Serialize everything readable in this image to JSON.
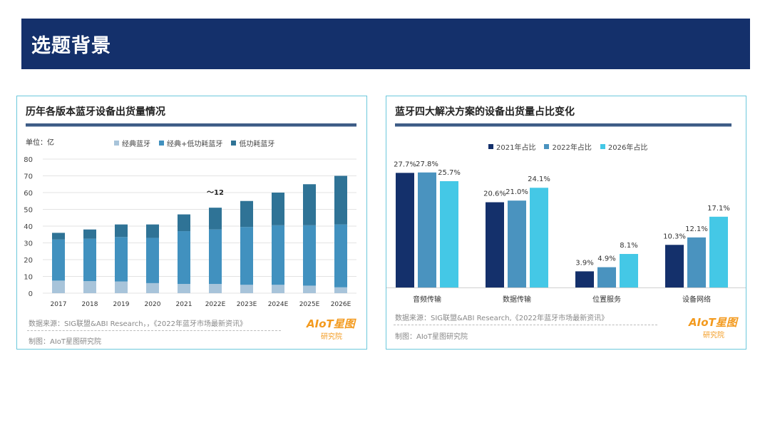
{
  "header": {
    "title": "选题背景"
  },
  "left_panel": {
    "title": "历年各版本蓝牙设备出货量情况",
    "unit_label": "单位：亿",
    "annotation": "～12",
    "source": "数据来源：SIG联盟&ABI Research，，《2022年蓝牙市场最新资讯》",
    "credit": "制图：AIoT星图研究院"
  },
  "right_panel": {
    "title": "蓝牙四大解决方案的设备出货量占比变化",
    "source": "数据来源：SIG联盟&ABI Research,《2022年蓝牙市场最新资讯》",
    "credit": "制图：AIoT星图研究院"
  },
  "logo": {
    "top": "AIoT星图",
    "bottom": "研究院"
  },
  "colors": {
    "header_bg": "#14306b",
    "classic": "#a8c4da",
    "dual": "#4191bf",
    "le": "#2f7396",
    "y2021": "#14306b",
    "y2022": "#4a93bf",
    "y2026": "#44c8e6",
    "accent_orange": "#f39a1e"
  },
  "chart_data": [
    {
      "type": "bar",
      "stacked": true,
      "title": "历年各版本蓝牙设备出货量情况",
      "ylabel": "单位：亿",
      "categories": [
        "2017",
        "2018",
        "2019",
        "2020",
        "2021",
        "2022E",
        "2023E",
        "2024E",
        "2025E",
        "2026E"
      ],
      "series": [
        {
          "name": "经典蓝牙",
          "values": [
            7.5,
            7.2,
            7.0,
            6.0,
            5.5,
            5.5,
            5.0,
            5.0,
            4.5,
            3.5
          ]
        },
        {
          "name": "经典+低功耗蓝牙",
          "values": [
            24.5,
            25.3,
            26.5,
            27.0,
            31.5,
            32.5,
            34.5,
            35.5,
            36.0,
            37.5
          ]
        },
        {
          "name": "低功耗蓝牙",
          "values": [
            4.0,
            5.5,
            7.5,
            8.0,
            10.0,
            13.0,
            15.5,
            19.5,
            24.5,
            29.0
          ]
        }
      ],
      "ylim": [
        0,
        80
      ],
      "yticks": [
        0,
        10,
        20,
        30,
        40,
        50,
        60,
        70,
        80
      ],
      "grid": true,
      "legend": "top"
    },
    {
      "type": "bar",
      "title": "蓝牙四大解决方案的设备出货量占比变化",
      "categories": [
        "音频传输",
        "数据传输",
        "位置服务",
        "设备网络"
      ],
      "series": [
        {
          "name": "2021年占比",
          "values": [
            27.7,
            20.6,
            3.9,
            10.3
          ]
        },
        {
          "name": "2022年占比",
          "values": [
            27.8,
            21.0,
            4.9,
            12.1
          ]
        },
        {
          "name": "2026年占比",
          "values": [
            25.7,
            24.1,
            8.1,
            17.1
          ]
        }
      ],
      "value_suffix": "%",
      "ylim": [
        0,
        30
      ],
      "legend": "top"
    }
  ]
}
